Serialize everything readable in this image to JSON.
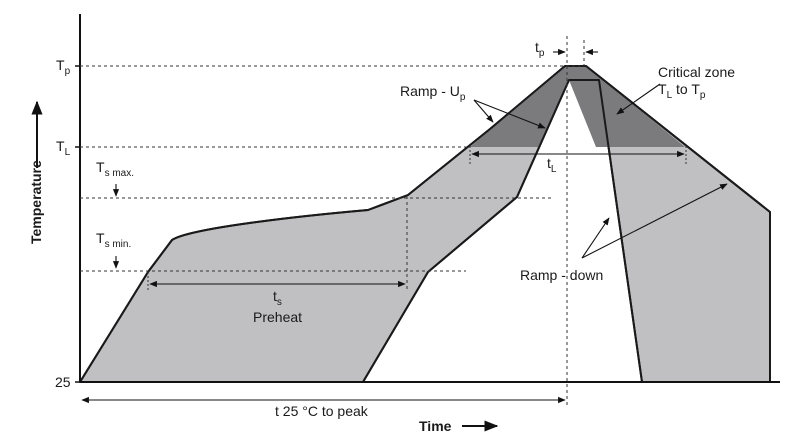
{
  "labels": {
    "tp_level": "T",
    "tp_level_sub": "p",
    "tl_level": "T",
    "tl_level_sub": "L",
    "ts_max": "T",
    "ts_max_sub": "s max.",
    "ts_min": "T",
    "ts_min_sub": "s min.",
    "start_temp": "25",
    "tp_duration": "t",
    "tp_duration_sub": "p",
    "tl_duration": "t",
    "tl_duration_sub": "L",
    "ts_duration": "t",
    "ts_duration_sub": "s",
    "preheat": "Preheat",
    "ramp_up": "Ramp - U",
    "ramp_up_sub": "p",
    "ramp_down": "Ramp - down",
    "critical_zone_line1": "Critical zone",
    "critical_zone_line2_a": "T",
    "critical_zone_line2_a_sub": "L",
    "critical_zone_line2_b": " to T",
    "critical_zone_line2_b_sub": "p",
    "time_to_peak": "t 25 °C to peak",
    "y_axis": "Temperature",
    "x_axis": "Time"
  },
  "colors": {
    "band_fill": "#c0c0c2",
    "critical_fill": "#7b7b7e",
    "outline": "#1a1a1a"
  }
}
